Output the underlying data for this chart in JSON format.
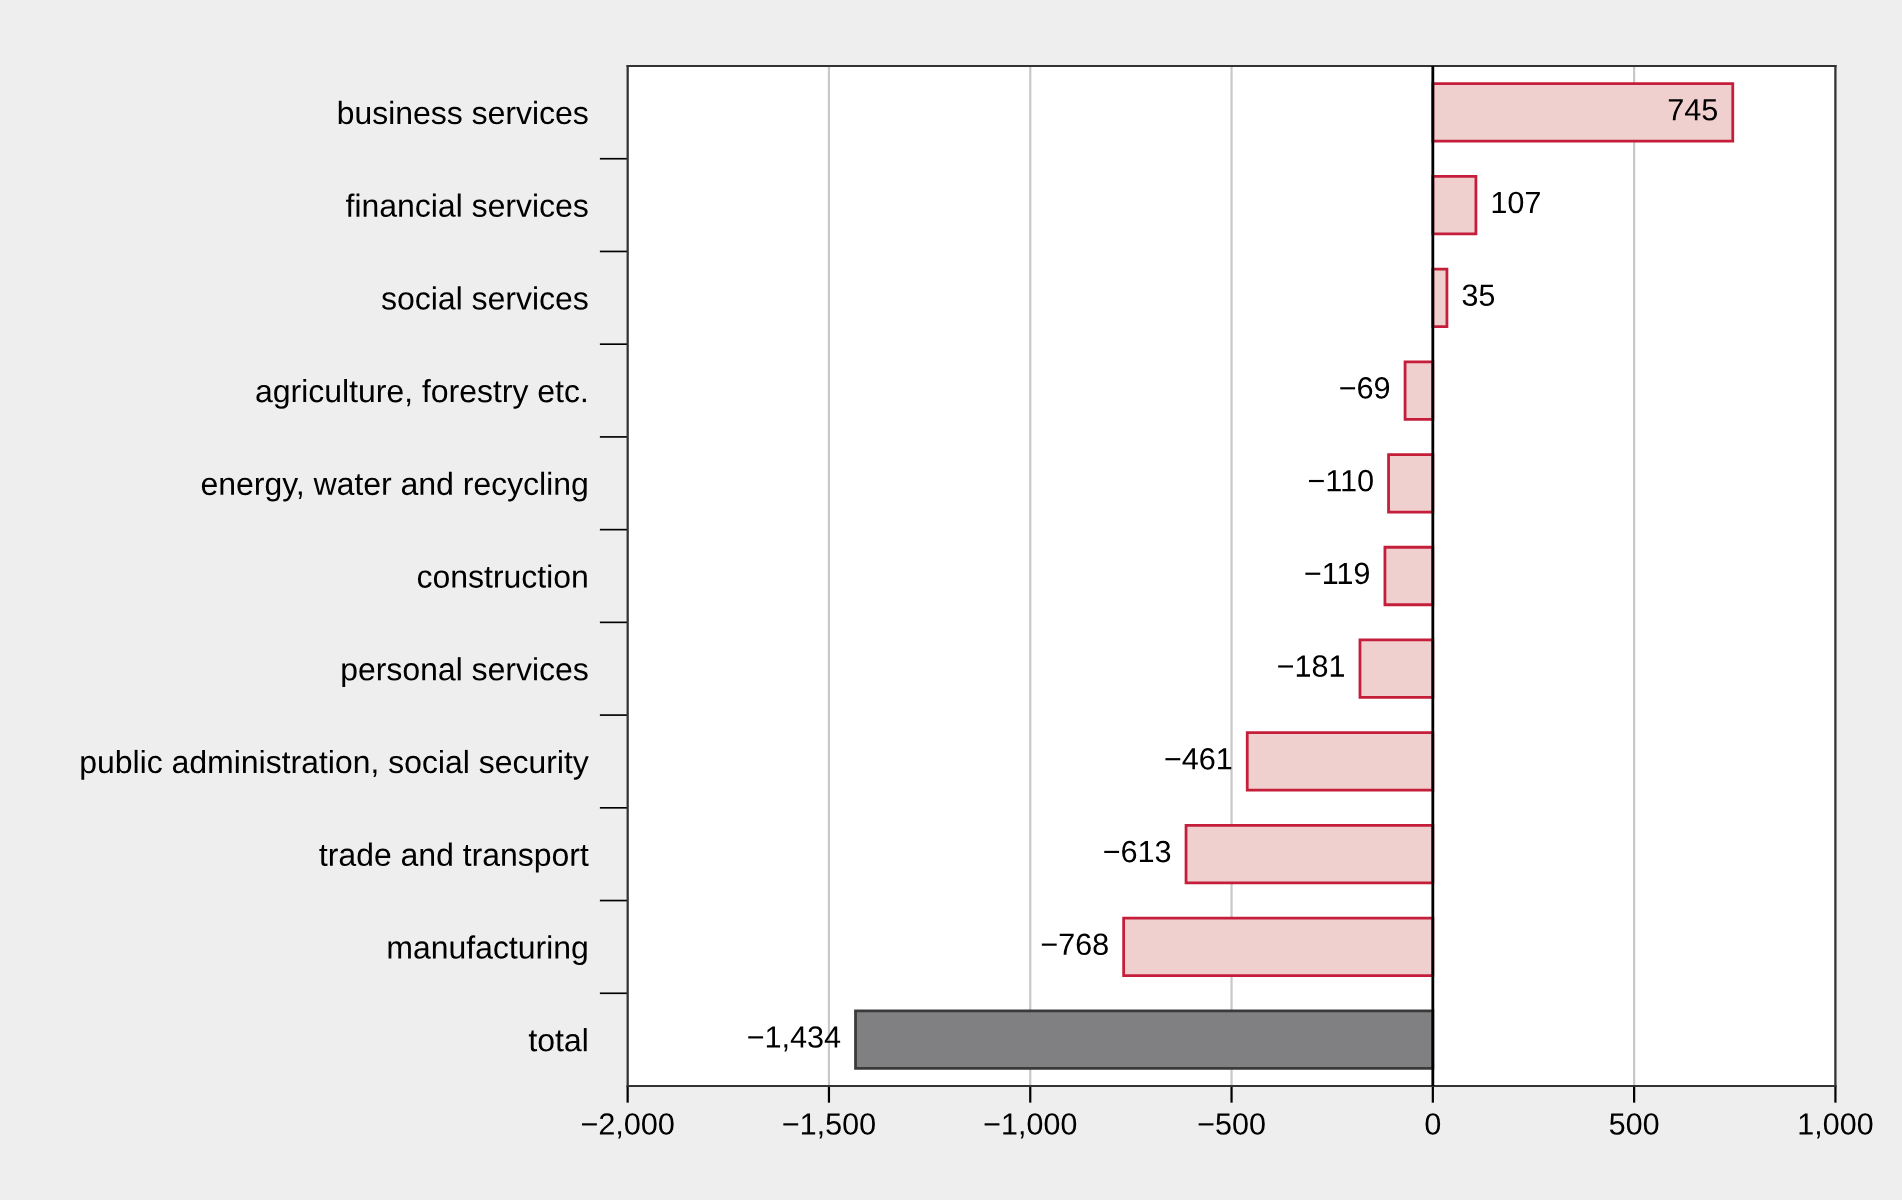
{
  "chart_data": {
    "type": "bar",
    "orientation": "horizontal",
    "categories": [
      "business services",
      "financial services",
      "social services",
      "agriculture, forestry etc.",
      "energy, water and recycling",
      "construction",
      "personal services",
      "public administration, social security",
      "trade and transport",
      "manufacturing",
      "total"
    ],
    "values": [
      745,
      107,
      35,
      -69,
      -110,
      -119,
      -181,
      -461,
      -613,
      -768,
      -1434
    ],
    "colors": [
      "#f0d0cf",
      "#f0d0cf",
      "#f0d0cf",
      "#f0d0cf",
      "#f0d0cf",
      "#f0d0cf",
      "#f0d0cf",
      "#f0d0cf",
      "#f0d0cf",
      "#f0d0cf",
      "#808083"
    ],
    "value_labels": [
      "745",
      "107",
      "35",
      "−69",
      "−110",
      "−119",
      "−181",
      "−461",
      "−613",
      "−768",
      "−1,434"
    ],
    "xlim": [
      -2000,
      1000
    ],
    "xticks": [
      {
        "value": -2000,
        "label": "−2,000"
      },
      {
        "value": -1500,
        "label": "−1,500"
      },
      {
        "value": -1000,
        "label": "−1,000"
      },
      {
        "value": -500,
        "label": "−500"
      },
      0,
      500,
      {
        "value": 1000,
        "label": "1,000"
      }
    ],
    "ref_lines": [
      {
        "axis": "x",
        "value": 0
      }
    ],
    "grid": "x"
  }
}
